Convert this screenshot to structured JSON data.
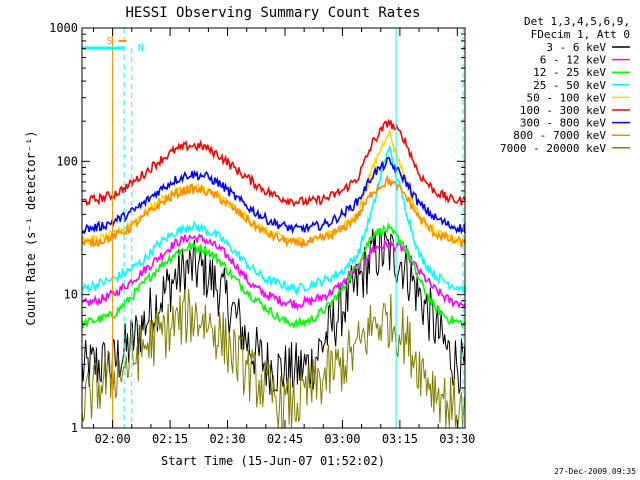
{
  "chart_data": {
    "type": "line",
    "title": "HESSI Observing Summary Count Rates",
    "xlabel": "Start Time (15-Jun-07 01:52:02)",
    "ylabel": "Count Rate (s⁻¹ detector⁻¹)",
    "y_scale": "log",
    "ylim": [
      1,
      1000
    ],
    "x_unit": "minutes since 01:52:02",
    "xlim": [
      0,
      100
    ],
    "grid": false,
    "legend_placement": "right",
    "xticks": [
      {
        "label": "02:00",
        "t": 8
      },
      {
        "label": "02:15",
        "t": 23
      },
      {
        "label": "02:30",
        "t": 38
      },
      {
        "label": "02:45",
        "t": 53
      },
      {
        "label": "03:00",
        "t": 68
      },
      {
        "label": "03:15",
        "t": 83
      },
      {
        "label": "03:30",
        "t": 98
      }
    ],
    "yticks": [
      {
        "label": "1",
        "v": 1
      },
      {
        "label": "10",
        "v": 10
      },
      {
        "label": "100",
        "v": 100
      },
      {
        "label": "1000",
        "v": 1000
      }
    ],
    "legend_header": [
      "Det 1,3,4,5,6,9,",
      "FDecim 1, Att 0"
    ],
    "markers": [
      {
        "label": "S",
        "color": "#ff8c00",
        "t": 8.5
      },
      {
        "label": "N",
        "color": "#00ffff",
        "t": 13
      }
    ],
    "series": [
      {
        "name": "3 - 6 keV",
        "color": "#000000",
        "values": [
          2.7,
          3,
          3,
          4,
          6,
          9,
          13,
          16,
          15,
          11,
          7,
          4,
          3,
          2.7,
          2.7,
          3,
          5,
          8,
          12,
          20,
          21,
          17,
          10,
          6,
          3.5,
          2.7
        ]
      },
      {
        "name": "6 - 12 keV",
        "color": "#ff00ff",
        "values": [
          8.5,
          9,
          10,
          12,
          15,
          19,
          24,
          27,
          26,
          22,
          17,
          12,
          10,
          9,
          8.5,
          9,
          10,
          12,
          16,
          22,
          24,
          22,
          15,
          11,
          9,
          8.5
        ]
      },
      {
        "name": "12 - 25 keV",
        "color": "#00ff00",
        "values": [
          6,
          6.5,
          7,
          9,
          12,
          16,
          20,
          23,
          22,
          18,
          13,
          10,
          8,
          6.5,
          6,
          6.5,
          8,
          11,
          17,
          29,
          31,
          24,
          13,
          8,
          6.5,
          6
        ]
      },
      {
        "name": "25 - 50 keV",
        "color": "#00ffff",
        "values": [
          11,
          12,
          13,
          15,
          18,
          24,
          29,
          33,
          31,
          27,
          21,
          16,
          13,
          12,
          11,
          12,
          13,
          15,
          20,
          45,
          130,
          50,
          20,
          14,
          12,
          11
        ]
      },
      {
        "name": "50 - 100 keV",
        "color": "#ffd700",
        "values": [
          25,
          26,
          28,
          33,
          40,
          50,
          58,
          64,
          62,
          54,
          44,
          36,
          30,
          27,
          25,
          26,
          28,
          32,
          40,
          90,
          170,
          80,
          38,
          30,
          26,
          25
        ]
      },
      {
        "name": "100 - 300 keV",
        "color": "#ff0000",
        "values": [
          50,
          52,
          56,
          65,
          80,
          100,
          120,
          132,
          128,
          110,
          88,
          72,
          60,
          53,
          50,
          50,
          53,
          60,
          75,
          140,
          200,
          150,
          80,
          60,
          52,
          50
        ]
      },
      {
        "name": "300 - 800 keV",
        "color": "#0000ff",
        "values": [
          31,
          32,
          35,
          40,
          48,
          60,
          72,
          80,
          78,
          68,
          54,
          44,
          37,
          33,
          31,
          32,
          34,
          40,
          50,
          80,
          100,
          75,
          48,
          38,
          33,
          31
        ]
      },
      {
        "name": "800 - 7000 keV",
        "color": "#ff8c00",
        "values": [
          24,
          25,
          27,
          31,
          38,
          47,
          56,
          62,
          60,
          53,
          43,
          35,
          29,
          26,
          24,
          25,
          27,
          31,
          39,
          60,
          72,
          58,
          38,
          29,
          26,
          24
        ]
      },
      {
        "name": "7000 - 20000 keV",
        "color": "#808000",
        "values": [
          1.5,
          2,
          2.5,
          3,
          4,
          5,
          6,
          7,
          6.5,
          5,
          3.5,
          2.5,
          2,
          1.5,
          1.5,
          2,
          2.5,
          3,
          4,
          6,
          6.5,
          5,
          3,
          2,
          1.5,
          1.3
        ]
      }
    ]
  },
  "footer": {
    "date_stamp": "27-Dec-2009 09:35"
  }
}
